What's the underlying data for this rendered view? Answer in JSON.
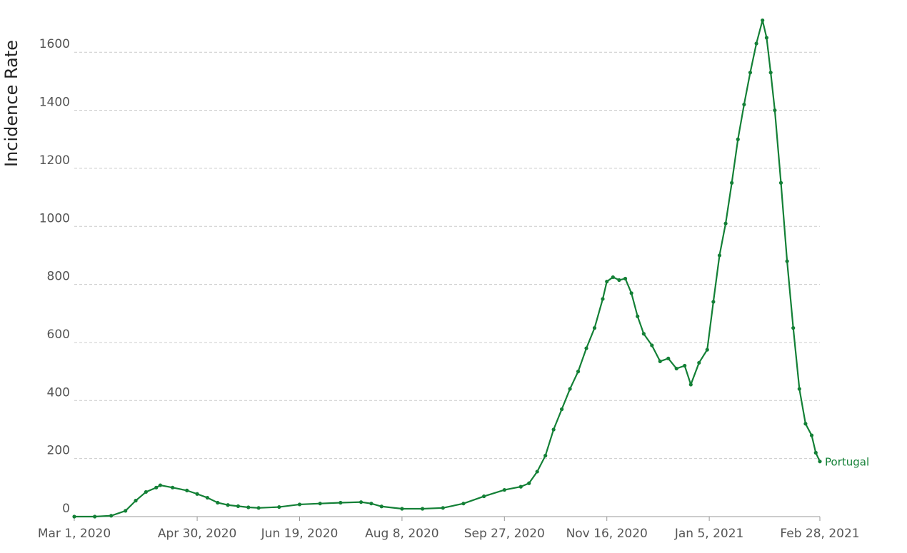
{
  "chart_data": {
    "type": "line",
    "y_label": "Incidence Rate",
    "x": [
      "2020-03-01",
      "2020-03-11",
      "2020-03-19",
      "2020-03-26",
      "2020-03-31",
      "2020-04-05",
      "2020-04-10",
      "2020-04-12",
      "2020-04-18",
      "2020-04-25",
      "2020-04-30",
      "2020-05-05",
      "2020-05-10",
      "2020-05-15",
      "2020-05-20",
      "2020-05-25",
      "2020-05-30",
      "2020-06-09",
      "2020-06-19",
      "2020-06-29",
      "2020-07-09",
      "2020-07-19",
      "2020-07-24",
      "2020-07-29",
      "2020-08-08",
      "2020-08-18",
      "2020-08-28",
      "2020-09-07",
      "2020-09-17",
      "2020-09-27",
      "2020-10-05",
      "2020-10-09",
      "2020-10-13",
      "2020-10-17",
      "2020-10-21",
      "2020-10-25",
      "2020-10-29",
      "2020-11-02",
      "2020-11-06",
      "2020-11-10",
      "2020-11-14",
      "2020-11-16",
      "2020-11-19",
      "2020-11-22",
      "2020-11-25",
      "2020-11-28",
      "2020-12-01",
      "2020-12-04",
      "2020-12-08",
      "2020-12-12",
      "2020-12-16",
      "2020-12-20",
      "2020-12-24",
      "2020-12-27",
      "2020-12-31",
      "2021-01-04",
      "2021-01-07",
      "2021-01-10",
      "2021-01-13",
      "2021-01-16",
      "2021-01-19",
      "2021-01-22",
      "2021-01-25",
      "2021-01-28",
      "2021-01-31",
      "2021-02-02",
      "2021-02-04",
      "2021-02-06",
      "2021-02-09",
      "2021-02-12",
      "2021-02-15",
      "2021-02-18",
      "2021-02-21",
      "2021-02-24",
      "2021-02-26",
      "2021-02-28"
    ],
    "series": [
      {
        "name": "Portugal",
        "color": "#138036",
        "values": [
          0,
          0,
          3,
          20,
          55,
          85,
          100,
          108,
          100,
          90,
          78,
          65,
          48,
          40,
          36,
          32,
          30,
          33,
          42,
          45,
          48,
          50,
          45,
          35,
          27,
          27,
          30,
          45,
          70,
          92,
          103,
          115,
          155,
          210,
          300,
          370,
          440,
          500,
          580,
          650,
          750,
          810,
          825,
          815,
          820,
          770,
          690,
          630,
          590,
          535,
          545,
          510,
          520,
          455,
          530,
          575,
          740,
          900,
          1010,
          1150,
          1300,
          1420,
          1530,
          1630,
          1710,
          1650,
          1530,
          1400,
          1150,
          880,
          650,
          440,
          320,
          280,
          220,
          190
        ]
      }
    ],
    "xlim": [
      "2020-03-01",
      "2021-02-28"
    ],
    "xticks": [
      {
        "value": "2020-03-01",
        "label": "Mar 1, 2020"
      },
      {
        "value": "2020-04-30",
        "label": "Apr 30, 2020"
      },
      {
        "value": "2020-06-19",
        "label": "Jun 19, 2020"
      },
      {
        "value": "2020-08-08",
        "label": "Aug 8, 2020"
      },
      {
        "value": "2020-09-27",
        "label": "Sep 27, 2020"
      },
      {
        "value": "2020-11-16",
        "label": "Nov 16, 2020"
      },
      {
        "value": "2021-01-05",
        "label": "Jan 5, 2021"
      },
      {
        "value": "2021-02-28",
        "label": "Feb 28, 2021"
      }
    ],
    "ylim": [
      0,
      1780
    ],
    "yticks": [
      0,
      200,
      400,
      600,
      800,
      1000,
      1200,
      1400,
      1600
    ],
    "grid": true
  }
}
